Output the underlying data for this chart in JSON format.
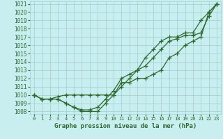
{
  "x": [
    0,
    1,
    2,
    3,
    4,
    5,
    6,
    7,
    8,
    9,
    10,
    11,
    12,
    13,
    14,
    15,
    16,
    17,
    18,
    19,
    20,
    21,
    22,
    23
  ],
  "line_low": [
    1010,
    1009.5,
    1009.5,
    1009.5,
    1009,
    1008.5,
    1008,
    1008,
    1008,
    1009,
    1010,
    1011.5,
    1011.5,
    1012,
    1012,
    1012.5,
    1013,
    1014.5,
    1015,
    1016,
    1016.5,
    1017,
    1020,
    1021
  ],
  "line_mid": [
    1010,
    1009.5,
    1009.5,
    1009.5,
    1009,
    1008.5,
    1008.2,
    1008.2,
    1008.5,
    1009.5,
    1010.5,
    1012,
    1012.5,
    1013,
    1013.5,
    1014.5,
    1015.5,
    1016.5,
    1016.8,
    1017.2,
    1017.2,
    1017.5,
    1019.5,
    1021
  ],
  "line_high": [
    1010,
    1009.5,
    1009.5,
    1009.8,
    1010,
    1010,
    1010,
    1010,
    1010,
    1010,
    1010,
    1011,
    1012,
    1013,
    1014.5,
    1015.5,
    1016.5,
    1017,
    1017,
    1017.5,
    1017.5,
    1019,
    1020,
    1021
  ],
  "ylim_min": 1007.7,
  "ylim_max": 1021.3,
  "xlim_min": -0.5,
  "xlim_max": 23.5,
  "yticks": [
    1008,
    1009,
    1010,
    1011,
    1012,
    1013,
    1014,
    1015,
    1016,
    1017,
    1018,
    1019,
    1020,
    1021
  ],
  "xticks": [
    0,
    1,
    2,
    3,
    4,
    5,
    6,
    7,
    8,
    9,
    10,
    11,
    12,
    13,
    14,
    15,
    16,
    17,
    18,
    19,
    20,
    21,
    22,
    23
  ],
  "line_color": "#2d6a2d",
  "marker": "+",
  "bg_color": "#c8eef0",
  "grid_color": "#9ecece",
  "xlabel": "Graphe pression niveau de la mer (hPa)",
  "tick_label_color": "#2d6a2d",
  "xlabel_color": "#2d6a2d"
}
